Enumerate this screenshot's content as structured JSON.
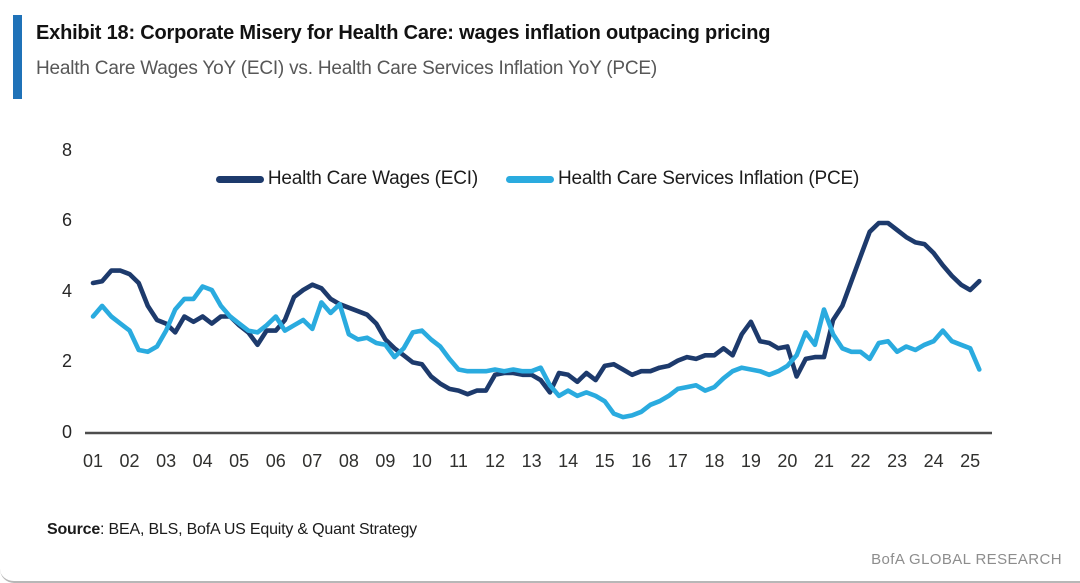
{
  "header": {
    "exhibit_title": "Exhibit 18: Corporate Misery for Health Care: wages inflation outpacing pricing",
    "subtitle": "Health Care Wages YoY (ECI) vs. Health Care Services Inflation YoY (PCE)",
    "accent_color": "#1f72b8"
  },
  "footer": {
    "source_label": "Source",
    "source_text": ": BEA, BLS, BofA US Equity & Quant Strategy",
    "brand": "BofA GLOBAL RESEARCH"
  },
  "chart_data": {
    "type": "line",
    "title": "Health Care Wages YoY (ECI) vs. Health Care Services Inflation YoY (PCE)",
    "xlabel": "",
    "ylabel": "",
    "ylim": [
      0,
      8
    ],
    "grid": false,
    "legend_position": "top-center",
    "y_ticks": [
      0,
      2,
      4,
      6,
      8
    ],
    "x_tick_labels": [
      "01",
      "02",
      "03",
      "04",
      "05",
      "06",
      "07",
      "08",
      "09",
      "10",
      "11",
      "12",
      "13",
      "14",
      "15",
      "16",
      "17",
      "18",
      "19",
      "20",
      "21",
      "22",
      "23",
      "24",
      "25"
    ],
    "x_start_year": 2001,
    "x_step_years": 0.25,
    "axis_line_color": "#4d4d4d",
    "series": [
      {
        "name": "Health Care Wages (ECI)",
        "color": "#1d3a6c",
        "values": [
          4.25,
          4.3,
          4.6,
          4.6,
          4.5,
          4.25,
          3.6,
          3.2,
          3.1,
          2.85,
          3.3,
          3.15,
          3.3,
          3.1,
          3.3,
          3.3,
          3.05,
          2.85,
          2.5,
          2.9,
          2.9,
          3.2,
          3.85,
          4.05,
          4.2,
          4.1,
          3.8,
          3.65,
          3.55,
          3.45,
          3.35,
          3.1,
          2.65,
          2.4,
          2.2,
          2.0,
          1.95,
          1.6,
          1.4,
          1.25,
          1.2,
          1.1,
          1.2,
          1.2,
          1.65,
          1.7,
          1.7,
          1.65,
          1.65,
          1.5,
          1.15,
          1.7,
          1.65,
          1.45,
          1.7,
          1.5,
          1.9,
          1.95,
          1.8,
          1.65,
          1.75,
          1.75,
          1.85,
          1.9,
          2.05,
          2.15,
          2.1,
          2.2,
          2.2,
          2.4,
          2.2,
          2.8,
          3.15,
          2.6,
          2.55,
          2.4,
          2.45,
          1.6,
          2.1,
          2.15,
          2.15,
          3.2,
          3.6,
          4.3,
          5.0,
          5.7,
          5.95,
          5.95,
          5.75,
          5.55,
          5.4,
          5.35,
          5.1,
          4.75,
          4.45,
          4.2,
          4.05,
          4.3
        ]
      },
      {
        "name": "Health Care Services Inflation (PCE)",
        "color": "#2aabdf",
        "values": [
          3.3,
          3.6,
          3.3,
          3.1,
          2.9,
          2.35,
          2.3,
          2.45,
          2.9,
          3.5,
          3.8,
          3.8,
          4.15,
          4.05,
          3.6,
          3.3,
          3.1,
          2.9,
          2.85,
          3.05,
          3.3,
          2.9,
          3.05,
          3.2,
          2.95,
          3.7,
          3.4,
          3.65,
          2.8,
          2.65,
          2.7,
          2.55,
          2.5,
          2.15,
          2.4,
          2.85,
          2.9,
          2.65,
          2.45,
          2.1,
          1.8,
          1.75,
          1.75,
          1.75,
          1.8,
          1.75,
          1.8,
          1.75,
          1.75,
          1.85,
          1.35,
          1.05,
          1.2,
          1.05,
          1.15,
          1.05,
          0.9,
          0.55,
          0.45,
          0.5,
          0.6,
          0.8,
          0.9,
          1.05,
          1.25,
          1.3,
          1.35,
          1.2,
          1.3,
          1.55,
          1.75,
          1.85,
          1.8,
          1.75,
          1.65,
          1.75,
          1.9,
          2.2,
          2.85,
          2.5,
          3.5,
          2.8,
          2.4,
          2.3,
          2.3,
          2.1,
          2.55,
          2.6,
          2.3,
          2.45,
          2.35,
          2.5,
          2.6,
          2.9,
          2.6,
          2.5,
          2.4,
          1.8
        ]
      }
    ]
  }
}
